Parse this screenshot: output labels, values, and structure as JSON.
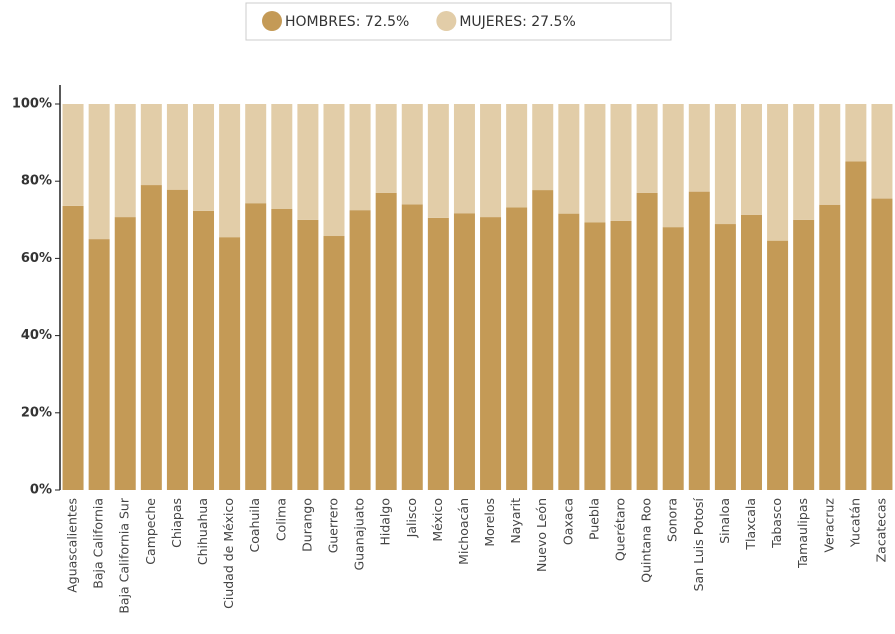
{
  "chart_data": {
    "type": "stacked_bar",
    "categories": [
      "Aguascalientes",
      "Baja California",
      "Baja California Sur",
      "Campeche",
      "Chiapas",
      "Chihuahua",
      "Ciudad de México",
      "Coahuila",
      "Colima",
      "Durango",
      "Guerrero",
      "Guanajuato",
      "Hidalgo",
      "Jalisco",
      "México",
      "Michoacán",
      "Morelos",
      "Nayarit",
      "Nuevo León",
      "Oaxaca",
      "Puebla",
      "Querétaro",
      "Quintana Roo",
      "Sonora",
      "San Luis Potosí",
      "Sinaloa",
      "Tlaxcala",
      "Tabasco",
      "Tamaulipas",
      "Veracruz",
      "Yucatán",
      "Zacatecas"
    ],
    "series": [
      {
        "name": "HOMBRES: 72.5%",
        "color": "#c49a56",
        "values": [
          73.6,
          65.0,
          70.7,
          79.0,
          77.8,
          72.3,
          65.5,
          74.3,
          72.8,
          70.0,
          65.8,
          72.5,
          77.0,
          74.0,
          70.5,
          71.7,
          70.7,
          73.2,
          77.7,
          71.6,
          69.3,
          69.7,
          77.0,
          68.1,
          77.3,
          68.9,
          71.3,
          64.6,
          70.0,
          73.9,
          85.1,
          75.5
        ]
      },
      {
        "name": "MUJERES: 27.5%",
        "color": "#e2cda8",
        "values": [
          26.4,
          35.0,
          29.3,
          21.0,
          22.2,
          27.7,
          34.5,
          25.7,
          27.2,
          30.0,
          34.2,
          27.5,
          23.0,
          26.0,
          29.5,
          28.3,
          29.3,
          26.8,
          22.3,
          28.4,
          30.7,
          30.3,
          23.0,
          31.9,
          22.7,
          31.1,
          28.7,
          35.4,
          30.0,
          26.1,
          14.9,
          24.5
        ]
      }
    ],
    "ylim": [
      0,
      100
    ],
    "yticks": [
      {
        "value": 0,
        "label": "0%"
      },
      {
        "value": 20,
        "label": "20%"
      },
      {
        "value": 40,
        "label": "40%"
      },
      {
        "value": 60,
        "label": "60%"
      },
      {
        "value": 80,
        "label": "80%"
      },
      {
        "value": 100,
        "label": "100%"
      }
    ],
    "legend": "top"
  }
}
